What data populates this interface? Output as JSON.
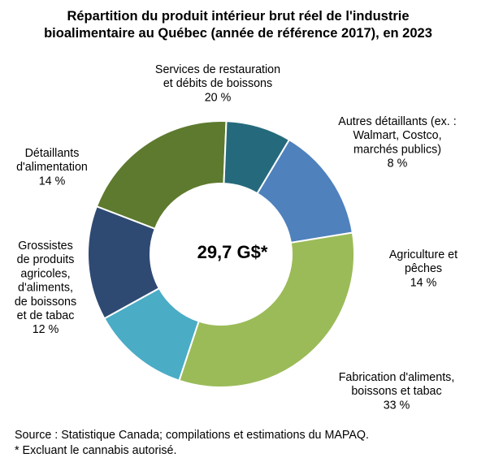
{
  "title": [
    "Répartition du produit intérieur brut réel de l'industrie",
    "bioalimentaire au Québec (année de référence 2017), en 2023"
  ],
  "center_label": "29,7 G$*",
  "footer": {
    "source": "Source : Statistique Canada; compilations et estimations du MAPAQ.",
    "note": "* Excluant le cannabis autorisé."
  },
  "chart_data": {
    "type": "pie",
    "donut": true,
    "total_label": "29,7 G$*",
    "unit": "%",
    "slices": [
      {
        "name": "Services de restauration et débits de boissons",
        "value": 20,
        "value_label": "20 %",
        "label_lines": [
          "Services de restauration",
          "et débits de boissons",
          "20 %"
        ],
        "color": "#5E7A2E"
      },
      {
        "name": "Autres détaillants (ex. : Walmart, Costco, marchés publics)",
        "value": 8,
        "value_label": "8 %",
        "label_lines": [
          "Autres détaillants (ex. :",
          "Walmart, Costco,",
          "marchés publics)",
          "8 %"
        ],
        "color": "#256A7C"
      },
      {
        "name": "Agriculture et pêches",
        "value": 14,
        "value_label": "14 %",
        "label_lines": [
          "Agriculture et",
          "pêches",
          "14 %"
        ],
        "color": "#4F81BD"
      },
      {
        "name": "Fabrication d'aliments, boissons et tabac",
        "value": 33,
        "value_label": "33 %",
        "label_lines": [
          "Fabrication d'aliments,",
          "boissons et tabac",
          "33 %"
        ],
        "color": "#9BBB59"
      },
      {
        "name": "Grossistes de produits agricoles, d'aliments, de boissons et de tabac",
        "value": 12,
        "value_label": "12 %",
        "label_lines": [
          "Grossistes",
          "de produits",
          "agricoles,",
          "d'aliments,",
          "de boissons",
          "et de tabac",
          "12 %"
        ],
        "color": "#4BACC6"
      },
      {
        "name": "Détaillants d'alimentation",
        "value": 14,
        "value_label": "14 %",
        "label_lines": [
          "Détaillants",
          "d'alimentation",
          "14 %"
        ],
        "color": "#2E4A73"
      }
    ]
  }
}
